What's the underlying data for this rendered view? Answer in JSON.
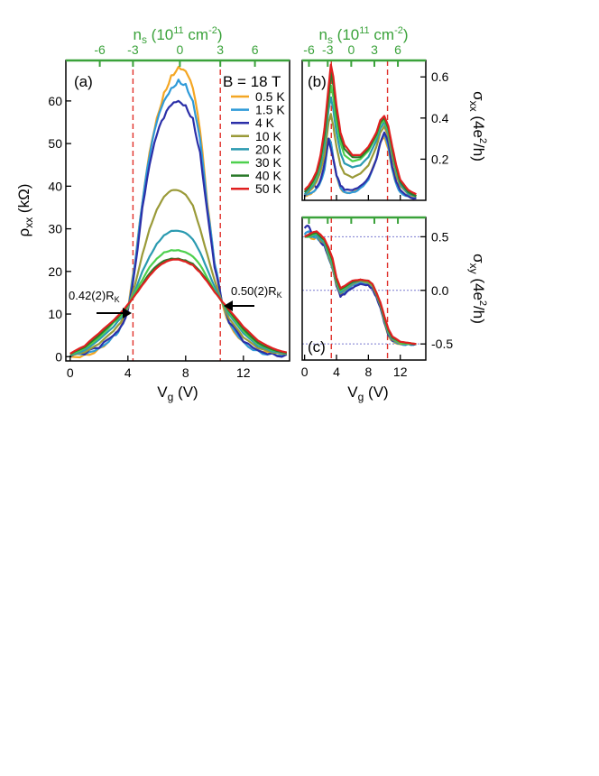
{
  "colors": {
    "green_axis": "#3aa23a",
    "vline": "#e0302a",
    "hline": "#7a7ad0",
    "series": {
      "0.5 K": "#f4a623",
      "1.5 K": "#2f9ad8",
      "4 K": "#2b2fa8",
      "10 K": "#9a9a38",
      "20 K": "#2a9ab0",
      "30 K": "#4dd04d",
      "40 K": "#2a7a2a",
      "50 K": "#e02020"
    }
  },
  "chart_data": [
    {
      "id": "a",
      "type": "line",
      "panel_label": "(a)",
      "title": "B = 18 T",
      "xlabel": "Vg (V)",
      "ylabel": "ρxx (kΩ)",
      "xlim": [
        -0.3,
        15.2
      ],
      "ylim": [
        -1,
        69.5
      ],
      "xticks": [
        0,
        4,
        8,
        12
      ],
      "yticks": [
        0,
        10,
        20,
        30,
        40,
        50,
        60
      ],
      "top_axis_label": "ns (10^11 cm^-2)",
      "top_ticks": [
        {
          "label": "-6",
          "vg": 2.05
        },
        {
          "label": "-3",
          "vg": 4.35
        },
        {
          "label": "0",
          "vg": 7.6
        },
        {
          "label": "3",
          "vg": 10.4
        },
        {
          "label": "6",
          "vg": 12.8
        }
      ],
      "vlines": [
        4.35,
        10.4
      ],
      "annotations": [
        {
          "text": "0.42(2)R",
          "sub": "K",
          "arrow_to": [
            4.2,
            10.8
          ],
          "side": "left"
        },
        {
          "text": "0.50(2)R",
          "sub": "K",
          "arrow_to": [
            10.6,
            12.9
          ],
          "side": "right"
        }
      ],
      "legend": [
        "0.5 K",
        "1.5 K",
        "4 K",
        "10 K",
        "20 K",
        "30 K",
        "40 K",
        "50 K"
      ],
      "x": [
        0,
        1,
        2,
        3,
        3.5,
        4,
        4.5,
        5,
        5.5,
        6,
        6.5,
        7,
        7.5,
        8,
        8.5,
        9,
        9.5,
        10,
        10.5,
        11,
        12,
        13,
        14,
        15
      ],
      "series": [
        {
          "name": "0.5 K",
          "values": [
            0,
            0.5,
            2,
            5,
            7,
            11,
            22,
            36,
            48,
            56,
            62,
            66,
            68,
            67,
            63,
            53,
            36,
            22,
            13,
            8,
            3.5,
            1.5,
            0.8,
            0.5
          ]
        },
        {
          "name": "1.5 K",
          "values": [
            0,
            0.5,
            2,
            5,
            7,
            11,
            22,
            36,
            47,
            55,
            60,
            63,
            65,
            64,
            60,
            51,
            35,
            22,
            13,
            8,
            3.5,
            1.5,
            0.8,
            0.5
          ]
        },
        {
          "name": "4 K",
          "values": [
            0,
            0.5,
            2,
            5,
            7,
            11,
            21,
            35,
            45,
            52,
            56,
            59,
            60,
            59,
            56,
            48,
            34,
            21,
            13,
            8,
            3.5,
            1.5,
            0.8,
            0.5
          ]
        },
        {
          "name": "10 K",
          "values": [
            0.3,
            1,
            3,
            6,
            8,
            11.5,
            17,
            24,
            30,
            34.5,
            37.5,
            39,
            39,
            38,
            35.5,
            30,
            24,
            18,
            13,
            9,
            4.5,
            2,
            1,
            0.6
          ]
        },
        {
          "name": "20 K",
          "values": [
            0.4,
            1.5,
            4,
            7,
            9,
            11.8,
            15.5,
            20,
            23.5,
            26.5,
            28.5,
            29.5,
            29.5,
            29,
            27.5,
            24.5,
            20.5,
            16.5,
            13,
            10,
            5.5,
            2.5,
            1.2,
            0.7
          ]
        },
        {
          "name": "30 K",
          "values": [
            0.5,
            2,
            4.5,
            8,
            9.5,
            12,
            15,
            18,
            21,
            23,
            24.5,
            25,
            25,
            24.5,
            23.5,
            21.5,
            18.5,
            15.5,
            13,
            10.5,
            6,
            3,
            1.5,
            0.8
          ]
        },
        {
          "name": "40 K",
          "values": [
            0.6,
            2.2,
            5,
            8.3,
            10,
            12.2,
            14.5,
            17,
            19.5,
            21.3,
            22.5,
            23,
            23,
            22.6,
            21.8,
            20,
            17.8,
            15.2,
            13,
            10.8,
            6.5,
            3.3,
            1.7,
            0.9
          ]
        },
        {
          "name": "50 K",
          "values": [
            0.7,
            2.5,
            5.5,
            8.5,
            10.3,
            12.3,
            14.5,
            16.8,
            19,
            20.8,
            22,
            22.7,
            22.8,
            22.3,
            21.5,
            19.8,
            17.6,
            15.2,
            13,
            11,
            7,
            3.8,
            2,
            1
          ]
        }
      ]
    },
    {
      "id": "b",
      "type": "line",
      "panel_label": "(b)",
      "ylabel": "σxx (4e²/h)",
      "xlim": [
        -0.3,
        15.2
      ],
      "ylim": [
        0,
        0.68
      ],
      "yticks": [
        0.2,
        0.4,
        0.6
      ],
      "ytick_labels": [
        "0.2",
        "0.4",
        "0.6"
      ],
      "top_axis_label": "ns (10^11 cm^-2)",
      "top_ticks": [
        {
          "label": "-6",
          "vg": 0.55
        },
        {
          "label": "-3",
          "vg": 2.9
        },
        {
          "label": "0",
          "vg": 5.85
        },
        {
          "label": "3",
          "vg": 8.75
        },
        {
          "label": "6",
          "vg": 11.7
        }
      ],
      "vlines": [
        3.35,
        10.4
      ],
      "x": [
        0,
        0.5,
        1,
        1.5,
        2,
        2.5,
        3,
        3.3,
        3.6,
        4,
        4.5,
        5,
        6,
        7,
        8,
        9,
        9.5,
        10,
        10.5,
        11,
        11.5,
        12,
        13,
        14
      ],
      "series": [
        {
          "name": "0.5 K",
          "values": [
            0.02,
            0.03,
            0.04,
            0.06,
            0.09,
            0.15,
            0.3,
            0.28,
            0.2,
            0.12,
            0.06,
            0.04,
            0.04,
            0.06,
            0.1,
            0.2,
            0.28,
            0.31,
            0.25,
            0.15,
            0.08,
            0.04,
            0.02,
            0.01
          ]
        },
        {
          "name": "1.5 K",
          "values": [
            0.02,
            0.03,
            0.04,
            0.06,
            0.09,
            0.15,
            0.3,
            0.28,
            0.2,
            0.12,
            0.06,
            0.04,
            0.04,
            0.06,
            0.1,
            0.2,
            0.28,
            0.32,
            0.26,
            0.15,
            0.08,
            0.04,
            0.02,
            0.01
          ]
        },
        {
          "name": "4 K",
          "values": [
            0.02,
            0.05,
            0.08,
            0.06,
            0.1,
            0.18,
            0.3,
            0.25,
            0.2,
            0.12,
            0.07,
            0.05,
            0.05,
            0.07,
            0.11,
            0.2,
            0.28,
            0.33,
            0.28,
            0.16,
            0.09,
            0.05,
            0.02,
            0.01
          ]
        },
        {
          "name": "10 K",
          "values": [
            0.03,
            0.04,
            0.06,
            0.09,
            0.14,
            0.22,
            0.38,
            0.42,
            0.36,
            0.26,
            0.17,
            0.13,
            0.11,
            0.13,
            0.17,
            0.26,
            0.33,
            0.36,
            0.31,
            0.21,
            0.12,
            0.07,
            0.03,
            0.02
          ]
        },
        {
          "name": "20 K",
          "values": [
            0.03,
            0.05,
            0.07,
            0.11,
            0.17,
            0.27,
            0.44,
            0.5,
            0.44,
            0.33,
            0.23,
            0.18,
            0.16,
            0.17,
            0.21,
            0.29,
            0.35,
            0.38,
            0.33,
            0.23,
            0.14,
            0.08,
            0.03,
            0.02
          ]
        },
        {
          "name": "30 K",
          "values": [
            0.04,
            0.06,
            0.08,
            0.12,
            0.19,
            0.3,
            0.48,
            0.56,
            0.5,
            0.38,
            0.28,
            0.22,
            0.19,
            0.2,
            0.24,
            0.31,
            0.37,
            0.39,
            0.34,
            0.24,
            0.15,
            0.09,
            0.04,
            0.02
          ]
        },
        {
          "name": "40 K",
          "values": [
            0.04,
            0.06,
            0.09,
            0.13,
            0.2,
            0.32,
            0.5,
            0.62,
            0.56,
            0.43,
            0.31,
            0.25,
            0.21,
            0.21,
            0.25,
            0.32,
            0.38,
            0.4,
            0.35,
            0.25,
            0.16,
            0.09,
            0.04,
            0.02
          ]
        },
        {
          "name": "50 K",
          "values": [
            0.05,
            0.07,
            0.1,
            0.14,
            0.22,
            0.35,
            0.55,
            0.66,
            0.6,
            0.46,
            0.33,
            0.27,
            0.22,
            0.22,
            0.26,
            0.33,
            0.39,
            0.41,
            0.36,
            0.26,
            0.17,
            0.1,
            0.05,
            0.03
          ]
        }
      ]
    },
    {
      "id": "c",
      "type": "line",
      "panel_label": "(c)",
      "xlabel": "Vg (V)",
      "ylabel": "σxy (4e²/h)",
      "xlim": [
        -0.3,
        15.2
      ],
      "ylim": [
        -0.65,
        0.68
      ],
      "xticks": [
        0,
        4,
        8,
        12
      ],
      "yticks": [
        -0.5,
        0,
        0.5
      ],
      "ytick_labels": [
        "-0.5",
        "0.0",
        "0.5"
      ],
      "hlines": [
        0.5,
        0,
        -0.5
      ],
      "vlines": [
        3.35,
        10.4
      ],
      "x": [
        0,
        0.5,
        1,
        1.5,
        2,
        2.5,
        3,
        3.5,
        4,
        4.5,
        5,
        6,
        7,
        8,
        8.5,
        9,
        9.5,
        10,
        10.5,
        11,
        12,
        13,
        14
      ],
      "series": [
        {
          "name": "0.5 K",
          "values": [
            0.5,
            0.52,
            0.48,
            0.5,
            0.45,
            0.42,
            0.3,
            0.2,
            0.05,
            -0.05,
            -0.02,
            0.05,
            0.08,
            0.06,
            0.03,
            -0.05,
            -0.15,
            -0.3,
            -0.42,
            -0.47,
            -0.5,
            -0.5,
            -0.5
          ]
        },
        {
          "name": "1.5 K",
          "values": [
            0.52,
            0.55,
            0.5,
            0.5,
            0.46,
            0.42,
            0.3,
            0.2,
            0.05,
            -0.05,
            -0.02,
            0.05,
            0.08,
            0.06,
            0.03,
            -0.05,
            -0.15,
            -0.3,
            -0.42,
            -0.47,
            -0.5,
            -0.5,
            -0.5
          ]
        },
        {
          "name": "4 K",
          "values": [
            0.58,
            0.6,
            0.5,
            0.55,
            0.45,
            0.42,
            0.32,
            0.22,
            0.04,
            -0.06,
            -0.04,
            0.02,
            0.06,
            0.05,
            0.02,
            -0.06,
            -0.16,
            -0.3,
            -0.42,
            -0.47,
            -0.5,
            -0.5,
            -0.5
          ]
        },
        {
          "name": "10 K",
          "values": [
            0.5,
            0.52,
            0.5,
            0.52,
            0.46,
            0.44,
            0.32,
            0.22,
            0.06,
            -0.03,
            0,
            0.06,
            0.09,
            0.07,
            0.04,
            -0.04,
            -0.14,
            -0.28,
            -0.4,
            -0.46,
            -0.5,
            -0.5,
            -0.5
          ]
        },
        {
          "name": "20 K",
          "values": [
            0.5,
            0.5,
            0.5,
            0.52,
            0.48,
            0.44,
            0.34,
            0.24,
            0.08,
            -0.02,
            0.01,
            0.07,
            0.1,
            0.08,
            0.05,
            -0.03,
            -0.13,
            -0.27,
            -0.39,
            -0.45,
            -0.49,
            -0.5,
            -0.5
          ]
        },
        {
          "name": "30 K",
          "values": [
            0.5,
            0.5,
            0.52,
            0.53,
            0.5,
            0.46,
            0.36,
            0.26,
            0.09,
            0,
            0.02,
            0.08,
            0.1,
            0.08,
            0.05,
            -0.03,
            -0.12,
            -0.26,
            -0.38,
            -0.44,
            -0.49,
            -0.5,
            -0.5
          ]
        },
        {
          "name": "40 K",
          "values": [
            0.5,
            0.51,
            0.53,
            0.54,
            0.5,
            0.47,
            0.38,
            0.28,
            0.1,
            0.01,
            0.03,
            0.08,
            0.1,
            0.09,
            0.06,
            -0.02,
            -0.12,
            -0.25,
            -0.37,
            -0.44,
            -0.48,
            -0.49,
            -0.5
          ]
        },
        {
          "name": "50 K",
          "values": [
            0.5,
            0.52,
            0.54,
            0.55,
            0.52,
            0.48,
            0.4,
            0.3,
            0.12,
            0.02,
            0.04,
            0.09,
            0.1,
            0.09,
            0.06,
            -0.02,
            -0.11,
            -0.24,
            -0.36,
            -0.43,
            -0.48,
            -0.49,
            -0.5
          ]
        }
      ]
    }
  ]
}
